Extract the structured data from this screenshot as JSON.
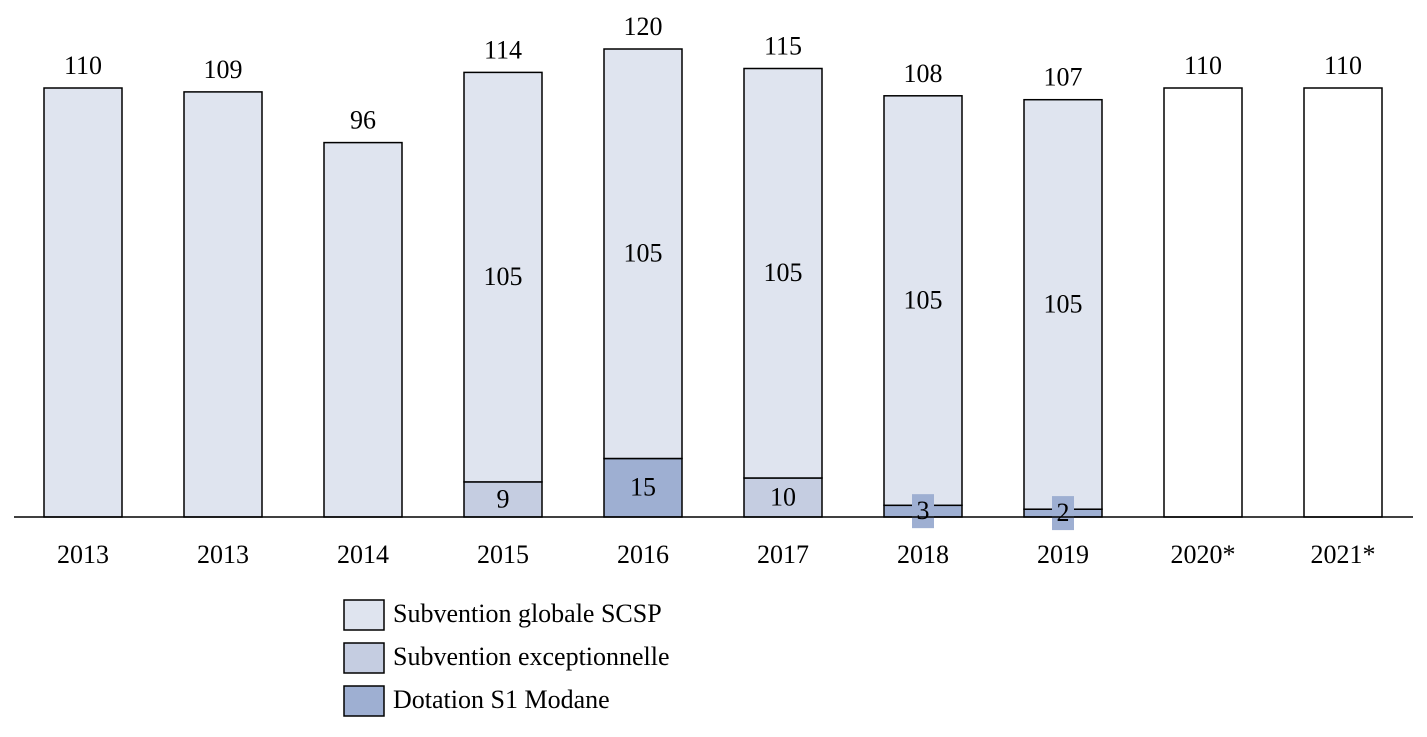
{
  "chart_data": {
    "type": "stacked_bar",
    "categories": [
      "2013",
      "2013",
      "2014",
      "2015",
      "2016",
      "2017",
      "2018",
      "2019",
      "2020*",
      "2021*"
    ],
    "series": [
      {
        "name": "Subvention globale SCSP",
        "color": "#dfe4ef",
        "colors": [
          "#dfe4ef",
          "#dfe4ef",
          "#dfe4ef",
          "#dfe4ef",
          "#dfe4ef",
          "#dfe4ef",
          "#dfe4ef",
          "#dfe4ef",
          "#ffffff",
          "#ffffff"
        ],
        "values": [
          110,
          109,
          96,
          105,
          105,
          105,
          105,
          105,
          110,
          110
        ]
      },
      {
        "name": "Subvention exceptionnelle",
        "color": "#c5cde1",
        "values": [
          null,
          null,
          null,
          9,
          null,
          10,
          null,
          null,
          null,
          null
        ]
      },
      {
        "name": "Dotation S1 Modane",
        "color": "#9eafd2",
        "values": [
          null,
          null,
          null,
          null,
          15,
          null,
          3,
          2,
          null,
          null
        ]
      }
    ],
    "totals": [
      110,
      109,
      96,
      114,
      120,
      115,
      108,
      107,
      110,
      110
    ]
  }
}
